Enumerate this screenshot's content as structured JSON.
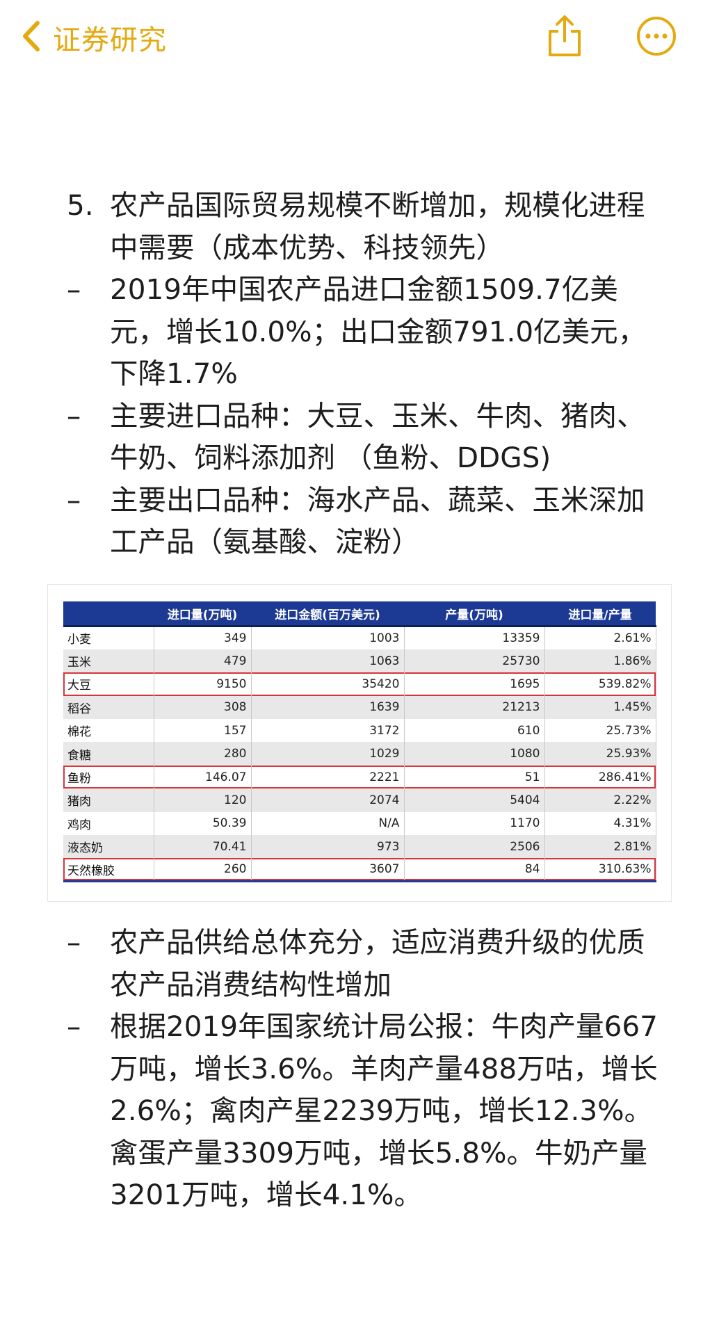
{
  "nav": {
    "back_label": "证券研究",
    "accent": "#e5a910",
    "icons": [
      "chevron-left-icon",
      "share-icon",
      "more-icon"
    ]
  },
  "content": {
    "heading": {
      "marker": "5.",
      "text": "农产品国际贸易规模不断增加，规模化进程中需要（成本优势、科技领先）"
    },
    "bullets_top": [
      {
        "marker": "–",
        "text": "2019年中国农产品进口金额1509.7亿美元，增长10.0%；出口金额791.0亿美元，下降1.7%"
      },
      {
        "marker": "–",
        "text": "主要进口品种：大豆、玉米、牛肉、猪肉、牛奶、饲料添加剂 （鱼粉、DDGS)"
      },
      {
        "marker": "–",
        "text": "主要出口品种：海水产品、蔬菜、玉米深加工产品（氨基酸、淀粉）"
      }
    ],
    "bullets_bottom": [
      {
        "marker": "–",
        "text": "农产品供给总体充分，适应消费升级的优质农产品消费结构性增加"
      },
      {
        "marker": "–",
        "text": "根据2019年国家统计局公报：牛肉产量667万吨，增长3.6%。羊肉产量488万咕，增长2.6%；禽肉产星2239万吨，增长12.3%。禽蛋产量3309万吨，增长5.8%。牛奶产量3201万吨，增长4.1%。"
      }
    ]
  },
  "table": {
    "header_color": "#1c3a94",
    "highlight_color": "#d8353b",
    "columns": [
      "",
      "进口量(万吨)",
      "进口金额(百万美元)",
      "产量(万吨)",
      "进口量/产量"
    ],
    "rows": [
      {
        "name": "小麦",
        "cells": [
          "349",
          "1003",
          "13359",
          "2.61%"
        ],
        "highlight": false
      },
      {
        "name": "玉米",
        "cells": [
          "479",
          "1063",
          "25730",
          "1.86%"
        ],
        "highlight": false
      },
      {
        "name": "大豆",
        "cells": [
          "9150",
          "35420",
          "1695",
          "539.82%"
        ],
        "highlight": true
      },
      {
        "name": "稻谷",
        "cells": [
          "308",
          "1639",
          "21213",
          "1.45%"
        ],
        "highlight": false
      },
      {
        "name": "棉花",
        "cells": [
          "157",
          "3172",
          "610",
          "25.73%"
        ],
        "highlight": false
      },
      {
        "name": "食糖",
        "cells": [
          "280",
          "1029",
          "1080",
          "25.93%"
        ],
        "highlight": false
      },
      {
        "name": "鱼粉",
        "cells": [
          "146.07",
          "2221",
          "51",
          "286.41%"
        ],
        "highlight": true
      },
      {
        "name": "猪肉",
        "cells": [
          "120",
          "2074",
          "5404",
          "2.22%"
        ],
        "highlight": false
      },
      {
        "name": "鸡肉",
        "cells": [
          "50.39",
          "N/A",
          "1170",
          "4.31%"
        ],
        "highlight": false
      },
      {
        "name": "液态奶",
        "cells": [
          "70.41",
          "973",
          "2506",
          "2.81%"
        ],
        "highlight": false
      },
      {
        "name": "天然橡胶",
        "cells": [
          "260",
          "3607",
          "84",
          "310.63%"
        ],
        "highlight": true
      }
    ]
  }
}
